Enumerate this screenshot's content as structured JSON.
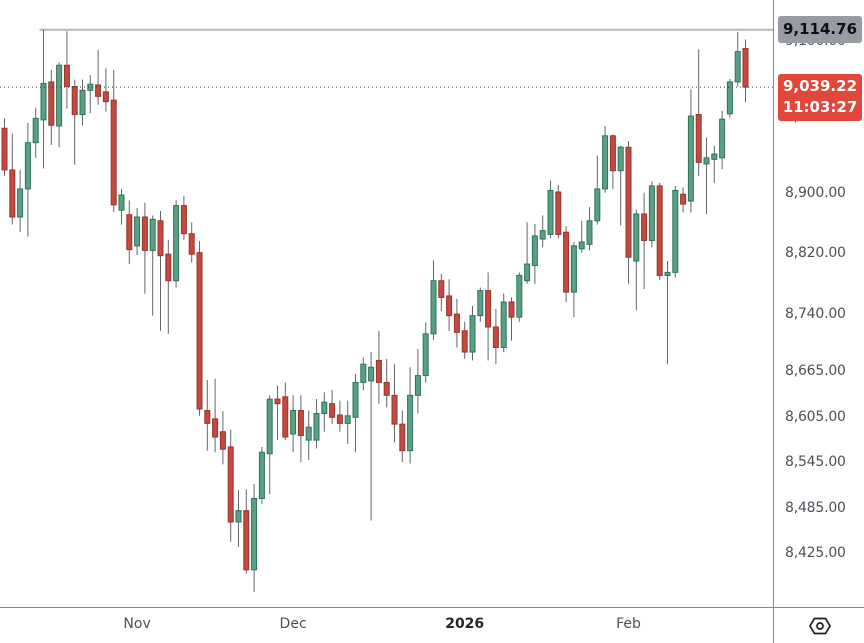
{
  "chart_data": {
    "type": "candlestick",
    "title": "",
    "ylim": [
      8354,
      9154
    ],
    "grid": "off",
    "y_axis": {
      "side": "right",
      "ticks": [
        {
          "price": 9100,
          "label": "9,100.00",
          "hidden_behind": "high-badge"
        },
        {
          "price": 9000,
          "label": "9,000.00",
          "hidden_behind": "last-badge"
        },
        {
          "price": 8900,
          "label": "8,900.00"
        },
        {
          "price": 8820,
          "label": "8,820.00"
        },
        {
          "price": 8740,
          "label": "8,740.00"
        },
        {
          "price": 8665,
          "label": "8,665.00"
        },
        {
          "price": 8605,
          "label": "8,605.00"
        },
        {
          "price": 8545,
          "label": "8,545.00"
        },
        {
          "price": 8485,
          "label": "8,485.00"
        },
        {
          "price": 8425,
          "label": "8,425.00"
        }
      ]
    },
    "x_axis": {
      "ticks": [
        {
          "label": "Nov",
          "index": 17
        },
        {
          "label": "Dec",
          "index": 37
        },
        {
          "label": "2026",
          "index": 59,
          "year": true
        },
        {
          "label": "Feb",
          "index": 80
        }
      ]
    },
    "high_line": {
      "price": 9114.76,
      "label": "9,114.76",
      "start_index": 5
    },
    "last_price": {
      "price": 9039.22,
      "label": "9,039.22",
      "countdown": "11:03:27",
      "direction": "down"
    },
    "candles_format": [
      "open",
      "high",
      "low",
      "close"
    ],
    "candles": [
      [
        8985,
        8998,
        8922,
        8930
      ],
      [
        8930,
        8978,
        8858,
        8868
      ],
      [
        8868,
        8930,
        8848,
        8905
      ],
      [
        8905,
        8992,
        8842,
        8966
      ],
      [
        8966,
        9012,
        8946,
        8998
      ],
      [
        8996,
        9114.76,
        8932,
        9044
      ],
      [
        9046,
        9062,
        8963,
        8989
      ],
      [
        8988,
        9072,
        8960,
        9068
      ],
      [
        9068,
        9113,
        9011,
        9040
      ],
      [
        9040,
        9049,
        8937,
        9003
      ],
      [
        9003,
        9049,
        8989,
        9035
      ],
      [
        9035,
        9055,
        9005,
        9043
      ],
      [
        9042,
        9088,
        9016,
        9027
      ],
      [
        9033,
        9064,
        9007,
        9020
      ],
      [
        9022,
        9062,
        8875,
        8884
      ],
      [
        8877,
        8905,
        8858,
        8897
      ],
      [
        8871,
        8890,
        8806,
        8825
      ],
      [
        8830,
        8880,
        8818,
        8868
      ],
      [
        8868,
        8887,
        8767,
        8824
      ],
      [
        8824,
        8870,
        8738,
        8865
      ],
      [
        8863,
        8876,
        8718,
        8817
      ],
      [
        8819,
        8838,
        8714,
        8784
      ],
      [
        8784,
        8890,
        8775,
        8883
      ],
      [
        8883,
        8896,
        8838,
        8846
      ],
      [
        8846,
        8861,
        8808,
        8819
      ],
      [
        8821,
        8836,
        8606,
        8615
      ],
      [
        8613,
        8653,
        8560,
        8596
      ],
      [
        8602,
        8655,
        8558,
        8578
      ],
      [
        8585,
        8612,
        8542,
        8562
      ],
      [
        8565,
        8588,
        8440,
        8466
      ],
      [
        8466,
        8508,
        8433,
        8481
      ],
      [
        8481,
        8509,
        8398,
        8403
      ],
      [
        8403,
        8516,
        8374,
        8497
      ],
      [
        8497,
        8565,
        8490,
        8558
      ],
      [
        8556,
        8633,
        8503,
        8628
      ],
      [
        8628,
        8646,
        8574,
        8622
      ],
      [
        8631,
        8650,
        8574,
        8578
      ],
      [
        8582,
        8633,
        8558,
        8613
      ],
      [
        8613,
        8633,
        8545,
        8580
      ],
      [
        8574,
        8613,
        8548,
        8591
      ],
      [
        8574,
        8628,
        8563,
        8609
      ],
      [
        8609,
        8637,
        8585,
        8624
      ],
      [
        8622,
        8640,
        8595,
        8604
      ],
      [
        8607,
        8626,
        8585,
        8596
      ],
      [
        8596,
        8626,
        8569,
        8606
      ],
      [
        8604,
        8661,
        8558,
        8650
      ],
      [
        8650,
        8683,
        8640,
        8674
      ],
      [
        8652,
        8690,
        8468,
        8670
      ],
      [
        8679,
        8718,
        8622,
        8650
      ],
      [
        8650,
        8681,
        8617,
        8633
      ],
      [
        8633,
        8674,
        8571,
        8595
      ],
      [
        8595,
        8613,
        8545,
        8560
      ],
      [
        8560,
        8670,
        8543,
        8633
      ],
      [
        8633,
        8694,
        8609,
        8659
      ],
      [
        8659,
        8729,
        8650,
        8714
      ],
      [
        8714,
        8811,
        8706,
        8784
      ],
      [
        8784,
        8793,
        8744,
        8762
      ],
      [
        8764,
        8786,
        8718,
        8738
      ],
      [
        8740,
        8760,
        8696,
        8716
      ],
      [
        8718,
        8730,
        8681,
        8690
      ],
      [
        8690,
        8751,
        8679,
        8738
      ],
      [
        8738,
        8775,
        8730,
        8771
      ],
      [
        8771,
        8795,
        8679,
        8723
      ],
      [
        8723,
        8747,
        8674,
        8696
      ],
      [
        8696,
        8767,
        8690,
        8756
      ],
      [
        8756,
        8762,
        8705,
        8736
      ],
      [
        8736,
        8795,
        8730,
        8791
      ],
      [
        8784,
        8861,
        8780,
        8806
      ],
      [
        8804,
        8859,
        8780,
        8843
      ],
      [
        8839,
        8870,
        8828,
        8850
      ],
      [
        8845,
        8916,
        8840,
        8903
      ],
      [
        8901,
        8910,
        8840,
        8845
      ],
      [
        8848,
        8856,
        8756,
        8769
      ],
      [
        8769,
        8835,
        8736,
        8830
      ],
      [
        8826,
        8863,
        8821,
        8835
      ],
      [
        8832,
        8881,
        8824,
        8863
      ],
      [
        8863,
        8949,
        8858,
        8905
      ],
      [
        8905,
        8988,
        8900,
        8975
      ],
      [
        8975,
        8977,
        8905,
        8929
      ],
      [
        8929,
        8962,
        8857,
        8960
      ],
      [
        8960,
        8968,
        8780,
        8815
      ],
      [
        8810,
        8878,
        8745,
        8872
      ],
      [
        8872,
        8900,
        8773,
        8837
      ],
      [
        8837,
        8915,
        8828,
        8909
      ],
      [
        8909,
        8913,
        8785,
        8791
      ],
      [
        8791,
        8810,
        8674,
        8795
      ],
      [
        8795,
        8909,
        8788,
        8903
      ],
      [
        8898,
        8907,
        8874,
        8885
      ],
      [
        8889,
        9036,
        8874,
        9001
      ],
      [
        9003,
        9089,
        8922,
        8940
      ],
      [
        8938,
        8973,
        8872,
        8946
      ],
      [
        8944,
        8962,
        8913,
        8951
      ],
      [
        8946,
        9008,
        8931,
        8997
      ],
      [
        9004,
        9050,
        8999,
        9046
      ],
      [
        9046,
        9112,
        9040,
        9086
      ],
      [
        9090,
        9102,
        9019,
        9039.22
      ]
    ]
  },
  "colors": {
    "up_fill": "#5aa084",
    "up_border": "#2f7257",
    "down_fill": "#c4493f",
    "down_border": "#98352e",
    "wick": "#62656c",
    "high_line": "#b4b7bf",
    "last_price_line": "#3a3d45",
    "axis_text": "#4d5058",
    "year_text": "#23262e",
    "axis_border": "#85888f",
    "badge_high_bg": "#989ba3",
    "badge_high_text": "#0e0f12",
    "badge_last_bg": "#e2473c",
    "badge_last_text": "#ffffff",
    "icon": "#1c1e24"
  },
  "icons": {
    "bottom_right": "hexagon-circle-icon"
  }
}
